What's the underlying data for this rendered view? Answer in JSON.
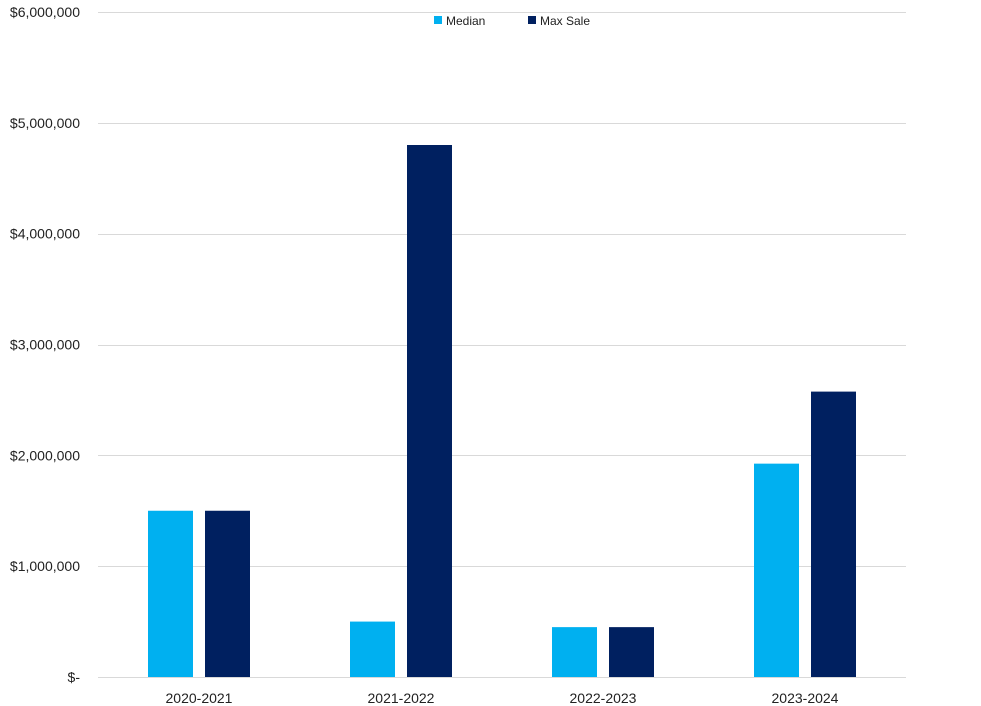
{
  "chart_data": {
    "type": "bar",
    "categories": [
      "2020-2021",
      "2021-2022",
      "2022-2023",
      "2023-2024"
    ],
    "series": [
      {
        "name": "Median",
        "values": [
          1500000,
          500000,
          450000,
          1925000
        ],
        "color": "#00B0F0"
      },
      {
        "name": "Max Sale",
        "values": [
          1500000,
          4800000,
          450000,
          2575000
        ],
        "color": "#002060"
      }
    ],
    "ylim": [
      0,
      6000000
    ],
    "y_ticks": [
      0,
      1000000,
      2000000,
      3000000,
      4000000,
      5000000,
      6000000
    ],
    "y_tick_labels": [
      "$-",
      "$1,000,000",
      "$2,000,000",
      "$3,000,000",
      "$4,000,000",
      "$5,000,000",
      "$6,000,000"
    ],
    "title": "",
    "xlabel": "",
    "ylabel": "",
    "grid": true,
    "gridline_color": "#D9D9D9",
    "legend_position": "top-center"
  }
}
